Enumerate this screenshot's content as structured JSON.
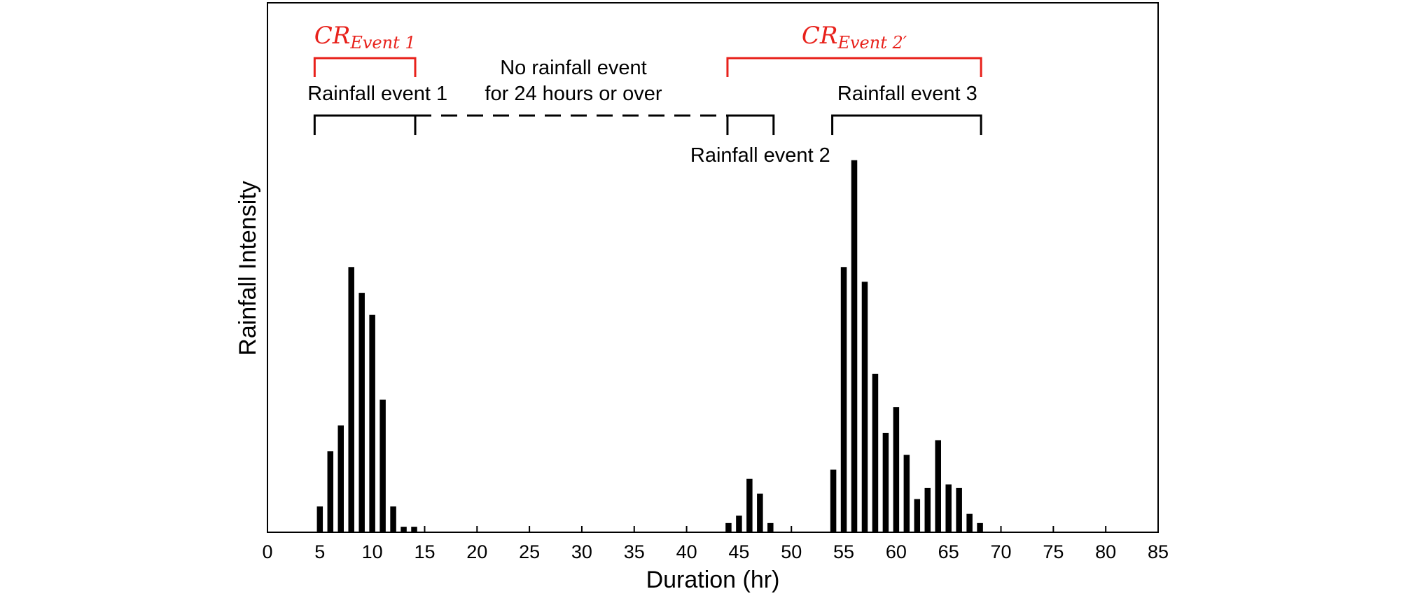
{
  "chart_data": {
    "type": "bar",
    "xlabel": "Duration (hr)",
    "ylabel": "Rainfall Intensity",
    "xlim": [
      0,
      85
    ],
    "ylim": [
      0,
      100
    ],
    "xticks": [
      0,
      5,
      10,
      15,
      20,
      25,
      30,
      35,
      40,
      45,
      50,
      55,
      60,
      65,
      70,
      75,
      80,
      85
    ],
    "y_tick_labels_shown": false,
    "bar_color": "#000000",
    "series": [
      {
        "name": "Rainfall intensity",
        "x": [
          5,
          6,
          7,
          8,
          9,
          10,
          11,
          12,
          13,
          14,
          44,
          45,
          46,
          47,
          48,
          54,
          55,
          56,
          57,
          58,
          59,
          60,
          61,
          62,
          63,
          64,
          65,
          66,
          67,
          68
        ],
        "values": [
          7,
          22,
          29,
          72,
          65,
          59,
          36,
          7,
          1.5,
          1.5,
          2.5,
          4.5,
          14.5,
          10.5,
          2.5,
          17,
          72,
          101,
          68,
          43,
          27,
          34,
          21,
          9,
          12,
          25,
          13,
          12,
          5,
          2.5
        ]
      }
    ],
    "events": [
      {
        "label": "Rainfall event 1",
        "start": 4.5,
        "end": 14.1
      },
      {
        "label": "Rainfall event 2",
        "start": 43.9,
        "end": 48.3
      },
      {
        "label": "Rainfall event 3",
        "start": 53.9,
        "end": 68.1
      }
    ],
    "gap_annotation": {
      "lines": [
        "No rainfall event",
        "for 24 hours or over"
      ],
      "start": 14.1,
      "end": 43.9
    },
    "cr_annotations": [
      {
        "base": "CR",
        "sub": "Event 1",
        "prime": false,
        "start": 4.5,
        "end": 14.1
      },
      {
        "base": "CR",
        "sub": "Event 2",
        "prime": true,
        "start": 43.9,
        "end": 68.1
      }
    ],
    "annotation_color": "#e8211b"
  }
}
